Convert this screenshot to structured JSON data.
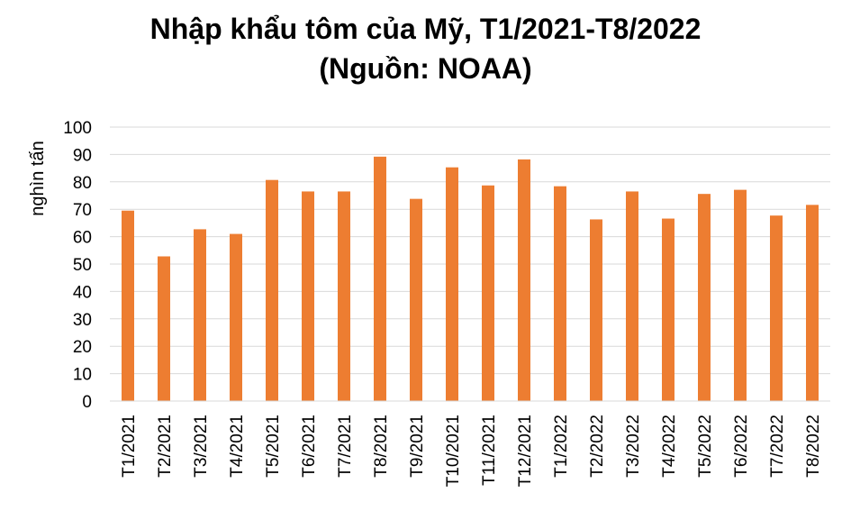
{
  "chart_data": {
    "type": "bar",
    "title": "Nhập khẩu tôm của Mỹ, T1/2021-T8/2022",
    "subtitle": "(Nguồn: NOAA)",
    "ylabel": "nghìn tấn",
    "xlabel": "",
    "ylim": [
      0,
      100
    ],
    "yticks": [
      0,
      10,
      20,
      30,
      40,
      50,
      60,
      70,
      80,
      90,
      100
    ],
    "grid": true,
    "bar_color": "#ED7D31",
    "grid_color": "#D9D9D9",
    "categories": [
      "T1/2021",
      "T2/2021",
      "T3/2021",
      "T4/2021",
      "T5/2021",
      "T6/2021",
      "T7/2021",
      "T8/2021",
      "T9/2021",
      "T10/2021",
      "T11/2021",
      "T12/2021",
      "T1/2022",
      "T2/2022",
      "T3/2022",
      "T4/2022",
      "T5/2022",
      "T6/2022",
      "T7/2022",
      "T8/2022"
    ],
    "values": [
      69.5,
      52.8,
      62.7,
      61.0,
      80.7,
      76.5,
      76.5,
      89.2,
      73.8,
      85.3,
      78.7,
      88.2,
      78.4,
      66.3,
      76.5,
      66.6,
      75.6,
      77.1,
      67.7,
      71.6
    ]
  }
}
